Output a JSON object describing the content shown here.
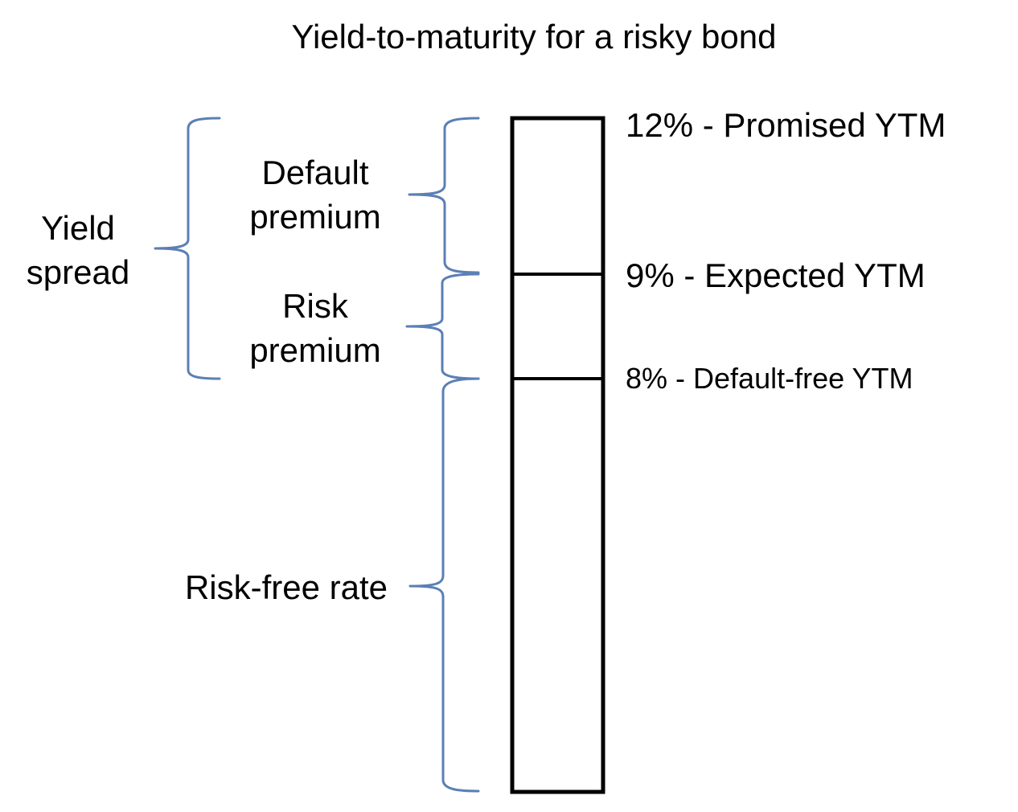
{
  "title": "Yield-to-maturity for a risky bond",
  "colors": {
    "brace": "#5b7fb5",
    "bar": "#000000",
    "text": "#000000"
  },
  "levels": [
    {
      "value": 12,
      "label": "12% - Promised YTM"
    },
    {
      "value": 9,
      "label": "9% - Expected YTM"
    },
    {
      "value": 8,
      "label": "8% - Default-free YTM"
    }
  ],
  "components": {
    "default_premium": {
      "line1": "Default",
      "line2": "premium"
    },
    "risk_premium": {
      "line1": "Risk",
      "line2": "premium"
    },
    "risk_free_rate": "Risk-free rate",
    "yield_spread": {
      "line1": "Yield",
      "line2": "spread"
    }
  }
}
